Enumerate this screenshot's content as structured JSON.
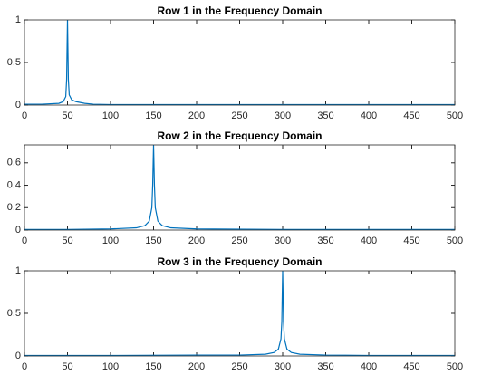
{
  "chart_data": [
    {
      "type": "line",
      "title": "Row 1 in the Frequency Domain",
      "x": [
        0,
        20,
        40,
        45,
        48,
        49,
        50,
        51,
        52,
        55,
        60,
        70,
        80,
        100,
        200,
        300,
        400,
        500
      ],
      "series": [
        {
          "color": "#0072bd",
          "values": [
            0.01,
            0.01,
            0.02,
            0.04,
            0.1,
            0.3,
            1.0,
            0.3,
            0.12,
            0.06,
            0.04,
            0.02,
            0.01,
            0.005,
            0.005,
            0.005,
            0.005,
            0.005
          ]
        }
      ],
      "xlim": [
        0,
        500
      ],
      "ylim": [
        0,
        1
      ],
      "xticks": [
        0,
        50,
        100,
        150,
        200,
        250,
        300,
        350,
        400,
        450,
        500
      ],
      "yticks": [
        0,
        0.5,
        1
      ]
    },
    {
      "type": "line",
      "title": "Row 2 in the Frequency Domain",
      "x": [
        0,
        50,
        100,
        130,
        140,
        145,
        148,
        149,
        150,
        151,
        152,
        155,
        160,
        170,
        200,
        300,
        400,
        500
      ],
      "series": [
        {
          "color": "#0072bd",
          "values": [
            0.005,
            0.005,
            0.01,
            0.02,
            0.04,
            0.08,
            0.2,
            0.4,
            0.76,
            0.4,
            0.2,
            0.08,
            0.04,
            0.02,
            0.01,
            0.005,
            0.005,
            0.005
          ]
        }
      ],
      "xlim": [
        0,
        500
      ],
      "ylim": [
        0,
        0.76
      ],
      "xticks": [
        0,
        50,
        100,
        150,
        200,
        250,
        300,
        350,
        400,
        450,
        500
      ],
      "yticks": [
        0,
        0.2,
        0.4,
        0.6
      ]
    },
    {
      "type": "line",
      "title": "Row 3 in the Frequency Domain",
      "x": [
        0,
        100,
        200,
        250,
        280,
        290,
        295,
        298,
        299,
        300,
        301,
        302,
        305,
        310,
        320,
        350,
        400,
        500
      ],
      "series": [
        {
          "color": "#0072bd",
          "values": [
            0.005,
            0.005,
            0.01,
            0.01,
            0.02,
            0.04,
            0.08,
            0.2,
            0.4,
            1.0,
            0.4,
            0.2,
            0.08,
            0.04,
            0.02,
            0.01,
            0.005,
            0.005
          ]
        }
      ],
      "xlim": [
        0,
        500
      ],
      "ylim": [
        0,
        1
      ],
      "xticks": [
        0,
        50,
        100,
        150,
        200,
        250,
        300,
        350,
        400,
        450,
        500
      ],
      "yticks": [
        0,
        0.5,
        1
      ]
    }
  ]
}
